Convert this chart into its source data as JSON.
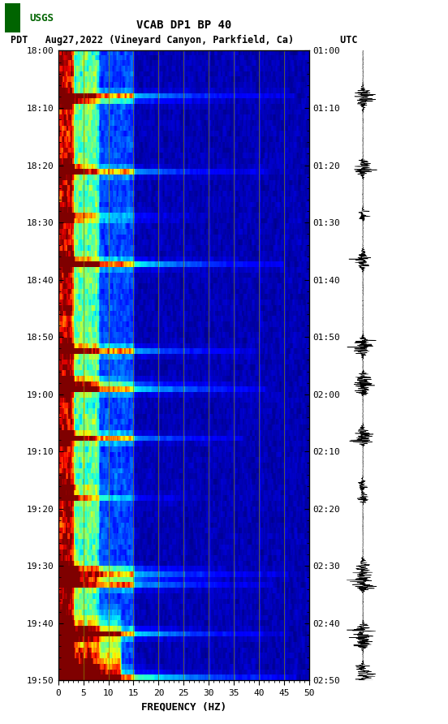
{
  "title_line1": "VCAB DP1 BP 40",
  "title_line2": "PDT   Aug27,2022 (Vineyard Canyon, Parkfield, Ca)        UTC",
  "xlabel": "FREQUENCY (HZ)",
  "freq_min": 0,
  "freq_max": 50,
  "freq_ticks": [
    0,
    5,
    10,
    15,
    20,
    25,
    30,
    35,
    40,
    45,
    50
  ],
  "pdt_ticks": [
    "18:00",
    "18:10",
    "18:20",
    "18:30",
    "18:40",
    "18:50",
    "19:00",
    "19:10",
    "19:20",
    "19:30",
    "19:40",
    "19:50"
  ],
  "utc_ticks": [
    "01:00",
    "01:10",
    "01:20",
    "01:30",
    "01:40",
    "01:50",
    "02:00",
    "02:10",
    "02:20",
    "02:30",
    "02:40",
    "02:50"
  ],
  "background_color": "#ffffff",
  "vert_line_color": "#888800",
  "vert_line_freqs": [
    5,
    10,
    15,
    20,
    25,
    30,
    35,
    40,
    45
  ],
  "fig_width": 5.52,
  "fig_height": 8.92,
  "dpi": 100,
  "n_time": 116,
  "n_freq": 250,
  "event_rows": [
    8,
    9,
    21,
    22,
    30,
    31,
    38,
    39,
    54,
    55,
    60,
    61,
    62,
    70,
    71,
    80,
    82,
    95,
    96,
    97,
    98,
    106,
    107,
    108,
    113,
    114,
    115
  ],
  "wide_event_rows": [
    8,
    22,
    39,
    55,
    62,
    71,
    96,
    98,
    107,
    115
  ],
  "usgs_logo_color": "#006400"
}
